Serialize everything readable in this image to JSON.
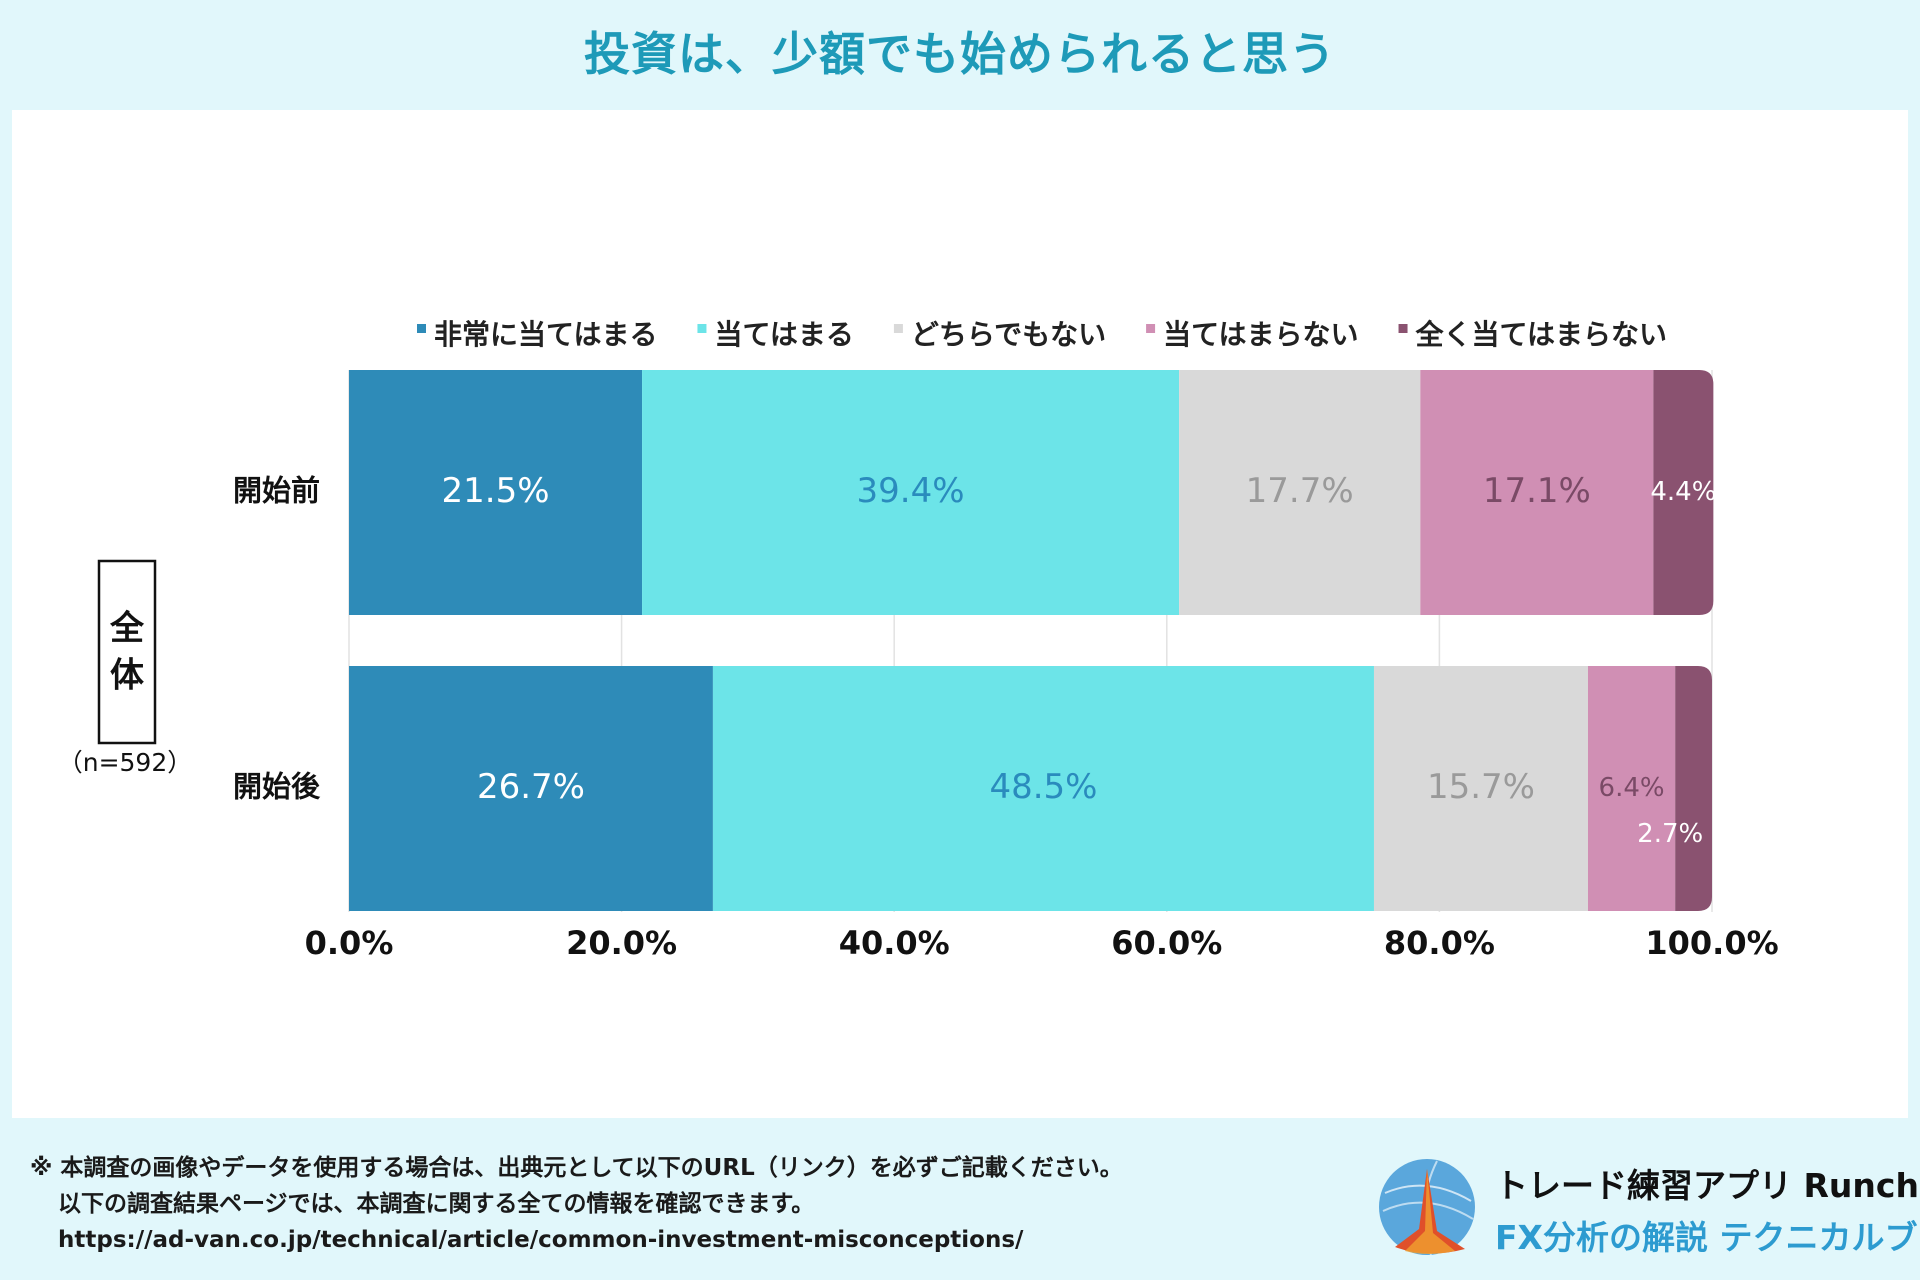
{
  "title": "投資は、少額でも始められると思う",
  "group": {
    "label": "全体",
    "n": "（n=592）"
  },
  "chart_data": {
    "type": "bar",
    "orientation": "horizontal-stacked-100",
    "categories": [
      "開始前",
      "開始後"
    ],
    "series": [
      {
        "name": "非常に当てはまる",
        "values": [
          21.5,
          26.7
        ],
        "color": "#2e8bb8",
        "label_color": "#ffffff"
      },
      {
        "name": "当てはまる",
        "values": [
          39.4,
          48.5
        ],
        "color": "#6ce4e8",
        "label_color": "#2a8bbd"
      },
      {
        "name": "どちらでもない",
        "values": [
          17.7,
          15.7
        ],
        "color": "#d9d9d9",
        "label_color": "#9a9a9a"
      },
      {
        "name": "当てはまらない",
        "values": [
          17.1,
          6.4
        ],
        "color": "#d08fb4",
        "label_color": "#7a4a66"
      },
      {
        "name": "全く当てはまらない",
        "values": [
          4.4,
          2.7
        ],
        "color": "#8a5270",
        "label_color": "#ffffff"
      }
    ],
    "value_labels": [
      [
        "21.5%",
        "39.4%",
        "17.7%",
        "17.1%",
        "4.4%"
      ],
      [
        "26.7%",
        "48.5%",
        "15.7%",
        "6.4%",
        "2.7%"
      ]
    ],
    "xlim": [
      0,
      100
    ],
    "xticks": [
      0,
      20,
      40,
      60,
      80,
      100
    ],
    "xtick_labels": [
      "0.0%",
      "20.0%",
      "40.0%",
      "60.0%",
      "80.0%",
      "100.0%"
    ],
    "legend_position": "top",
    "grid": true
  },
  "footer": {
    "line1": "※ 本調査の画像やデータを使用する場合は、出典元として以下のURL（リンク）を必ずご記載ください。",
    "line2": "以下の調査結果ページでは、本調査に関する全ての情報を確認できます。",
    "url": "https://ad-van.co.jp/technical/article/common-investment-misconceptions/"
  },
  "brand": {
    "name": "トレード練習アプリ  Runcha",
    "sub": "FX分析の解説  テクニカルブック"
  }
}
